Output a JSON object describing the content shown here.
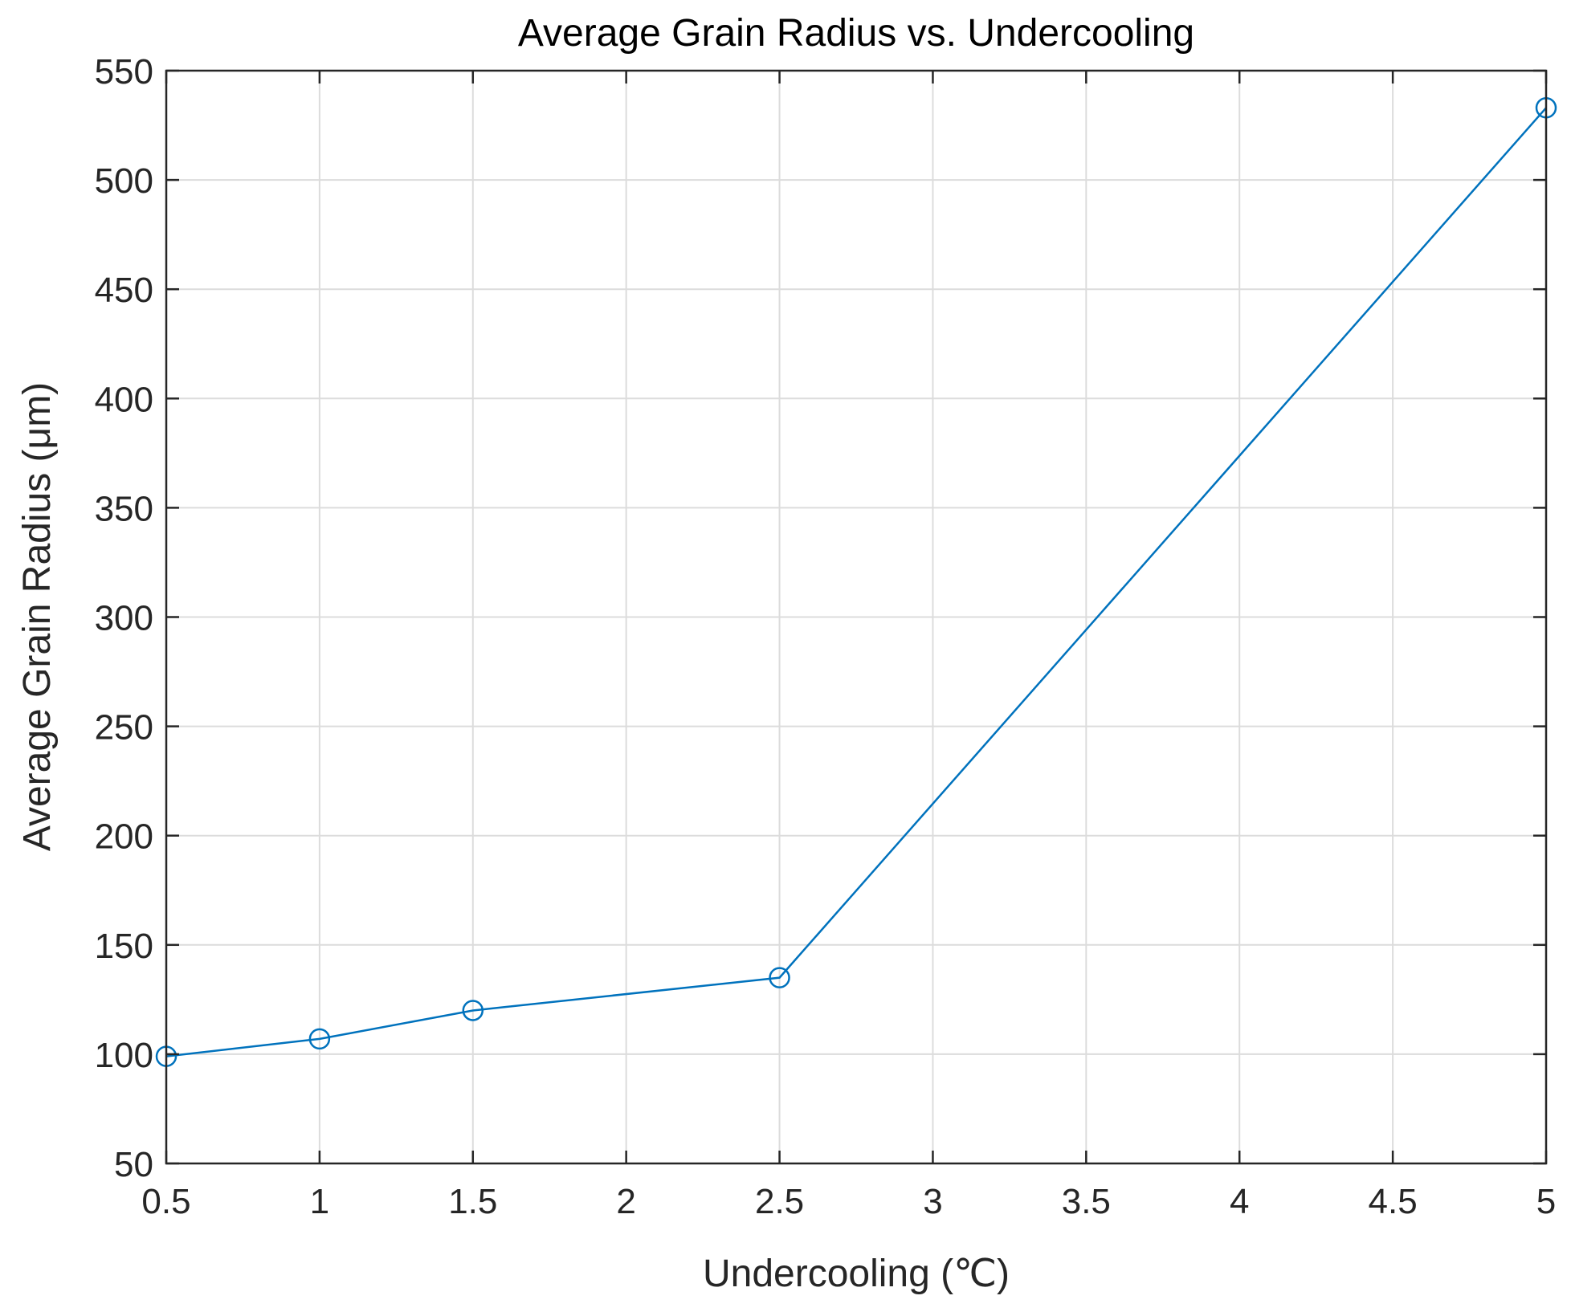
{
  "chart_data": {
    "type": "line",
    "title": "Average Grain Radius vs. Undercooling",
    "xlabel": "Undercooling (℃)",
    "ylabel": "Average Grain Radius (μm)",
    "xlim": [
      0.5,
      5
    ],
    "ylim": [
      50,
      550
    ],
    "xticks": [
      0.5,
      1,
      1.5,
      2,
      2.5,
      3,
      3.5,
      4,
      4.5,
      5
    ],
    "xtick_labels": [
      "0.5",
      "1",
      "1.5",
      "2",
      "2.5",
      "3",
      "3.5",
      "4",
      "4.5",
      "5"
    ],
    "yticks": [
      50,
      100,
      150,
      200,
      250,
      300,
      350,
      400,
      450,
      500,
      550
    ],
    "ytick_labels": [
      "50",
      "100",
      "150",
      "200",
      "250",
      "300",
      "350",
      "400",
      "450",
      "500",
      "550"
    ],
    "grid": true,
    "series": [
      {
        "x": [
          0.5,
          1,
          1.5,
          2.5,
          5
        ],
        "y": [
          99,
          107,
          120,
          135,
          533
        ],
        "marker": "circle",
        "color": "#0072BD"
      }
    ]
  }
}
